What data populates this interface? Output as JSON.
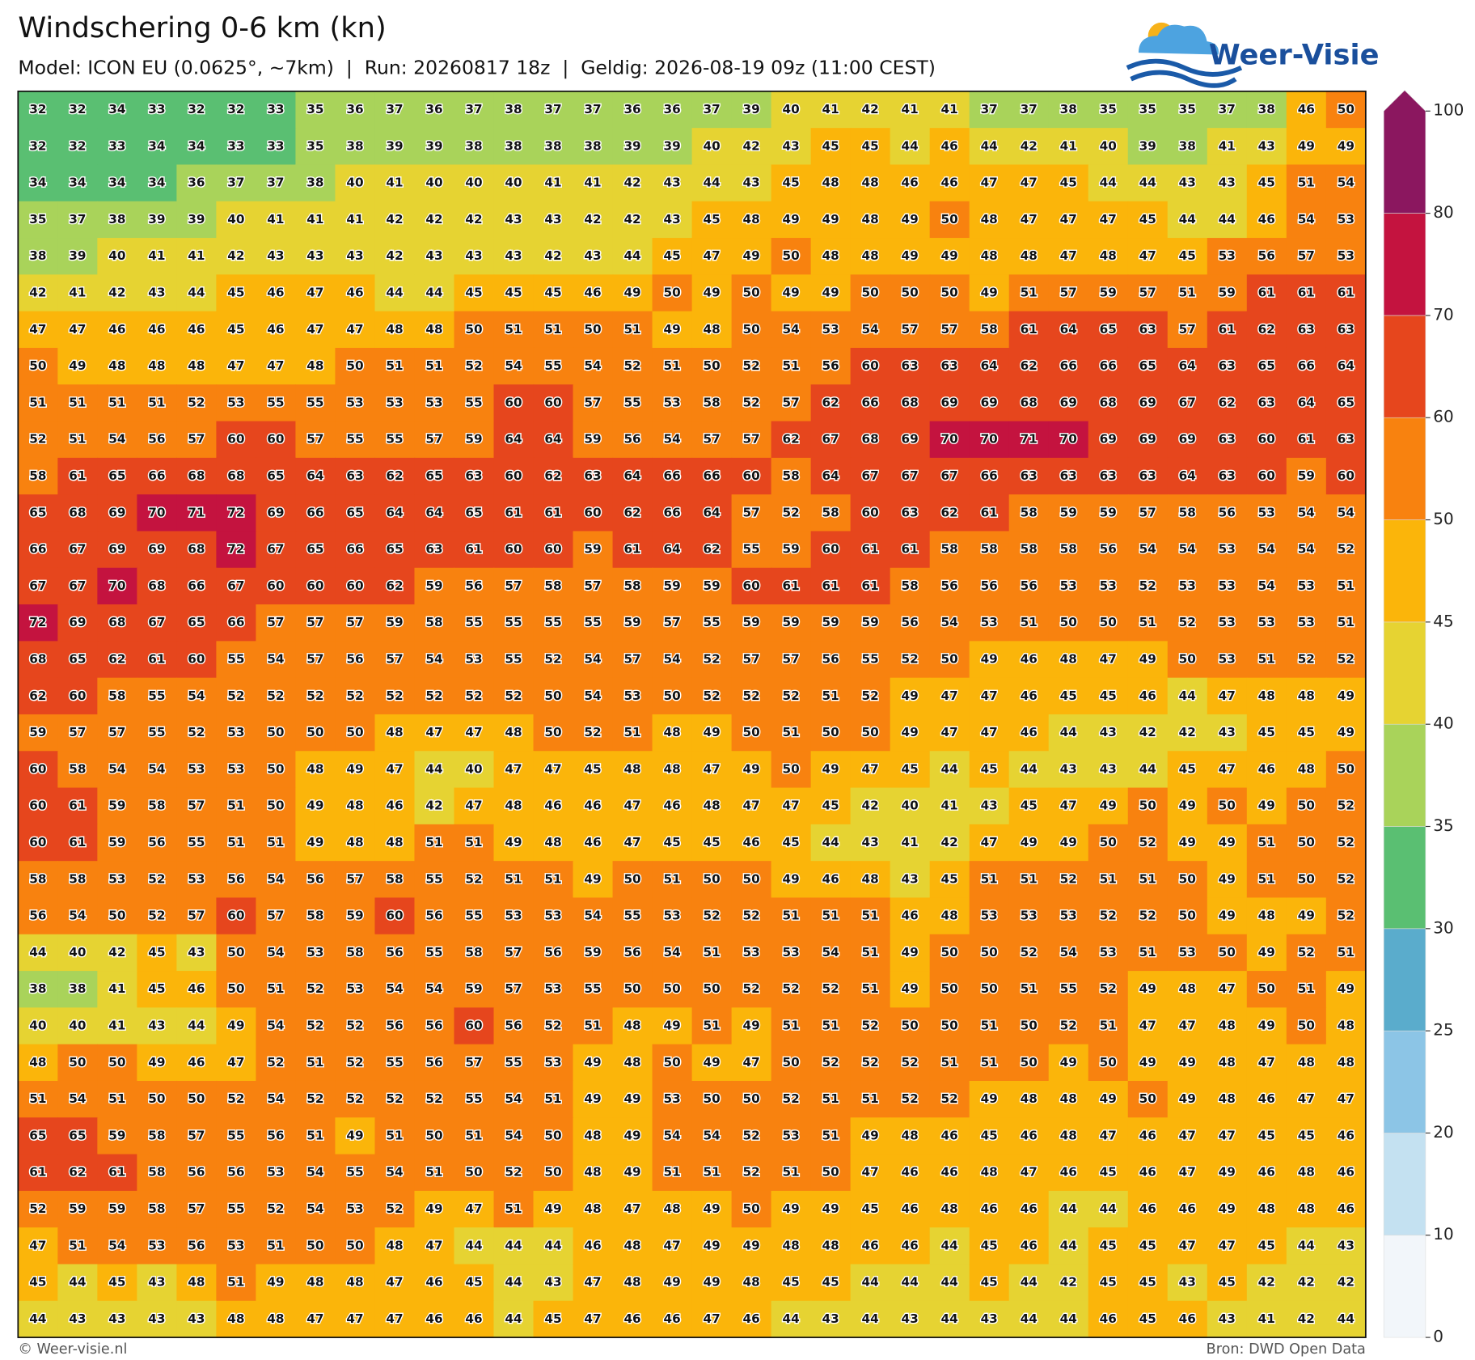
{
  "chart_data": {
    "type": "heatmap",
    "title": "Windschering 0-6 km (kn)",
    "subtitle": "Model: ICON EU (0.0625°, ~7km)  |  Run: 20260817 18z  |  Geldig: 2026-08-19 09z (11:00 CEST)",
    "logo": "Weer-Visie",
    "credit": "© Weer-visie.nl",
    "source": "Bron: DWD Open Data",
    "levels": [
      0,
      10,
      20,
      25,
      30,
      35,
      40,
      45,
      50,
      60,
      70,
      80,
      100
    ],
    "colors": [
      "#f2f6fa",
      "#c4e1f1",
      "#8cc5e6",
      "#5aaccc",
      "#5abf72",
      "#a9d35a",
      "#e6d332",
      "#fbb50a",
      "#f8820f",
      "#e6461d",
      "#c4133f",
      "#8b175f"
    ],
    "values": [
      [
        32,
        32,
        34,
        33,
        32,
        32,
        33,
        35,
        36,
        37,
        36,
        37,
        38,
        37,
        37,
        36,
        36,
        37,
        39,
        40,
        41,
        42,
        41,
        41,
        37,
        37,
        38,
        35,
        35,
        35,
        37,
        38,
        46,
        50
      ],
      [
        32,
        32,
        33,
        34,
        34,
        33,
        33,
        35,
        38,
        39,
        39,
        38,
        38,
        38,
        38,
        39,
        39,
        40,
        42,
        43,
        45,
        45,
        44,
        46,
        44,
        42,
        41,
        40,
        39,
        38,
        41,
        43,
        49,
        49
      ],
      [
        34,
        34,
        34,
        34,
        36,
        37,
        37,
        38,
        40,
        41,
        40,
        40,
        40,
        41,
        41,
        42,
        43,
        44,
        43,
        45,
        48,
        48,
        46,
        46,
        47,
        47,
        45,
        44,
        44,
        43,
        43,
        45,
        51,
        54
      ],
      [
        35,
        37,
        38,
        39,
        39,
        40,
        41,
        41,
        41,
        42,
        42,
        42,
        43,
        43,
        42,
        42,
        43,
        45,
        48,
        49,
        49,
        48,
        49,
        50,
        48,
        47,
        47,
        47,
        45,
        44,
        44,
        46,
        54,
        53
      ],
      [
        38,
        39,
        40,
        41,
        41,
        42,
        43,
        43,
        43,
        42,
        43,
        43,
        43,
        42,
        43,
        44,
        45,
        47,
        49,
        50,
        48,
        48,
        49,
        49,
        48,
        48,
        47,
        48,
        47,
        45,
        53,
        56,
        57,
        53
      ],
      [
        42,
        41,
        42,
        43,
        44,
        45,
        46,
        47,
        46,
        44,
        44,
        45,
        45,
        45,
        46,
        49,
        50,
        49,
        50,
        49,
        49,
        50,
        50,
        50,
        49,
        51,
        57,
        59,
        57,
        51,
        59,
        61,
        61,
        61
      ],
      [
        47,
        47,
        46,
        46,
        46,
        45,
        46,
        47,
        47,
        48,
        48,
        50,
        51,
        51,
        50,
        51,
        49,
        48,
        50,
        54,
        53,
        54,
        57,
        57,
        58,
        61,
        64,
        65,
        63,
        57,
        61,
        62,
        63,
        63
      ],
      [
        50,
        49,
        48,
        48,
        48,
        47,
        47,
        48,
        50,
        51,
        51,
        52,
        54,
        55,
        54,
        52,
        51,
        50,
        52,
        51,
        56,
        60,
        63,
        63,
        64,
        62,
        66,
        66,
        65,
        64,
        63,
        65,
        66,
        64
      ],
      [
        51,
        51,
        51,
        51,
        52,
        53,
        55,
        55,
        53,
        53,
        53,
        55,
        60,
        60,
        57,
        55,
        53,
        58,
        52,
        57,
        62,
        66,
        68,
        69,
        69,
        68,
        69,
        68,
        69,
        67,
        62,
        63,
        64,
        65
      ],
      [
        52,
        51,
        54,
        56,
        57,
        60,
        60,
        57,
        55,
        55,
        57,
        59,
        64,
        64,
        59,
        56,
        54,
        57,
        57,
        62,
        67,
        68,
        69,
        70,
        70,
        71,
        70,
        69,
        69,
        69,
        63,
        60,
        61,
        63
      ],
      [
        58,
        61,
        65,
        66,
        68,
        68,
        65,
        64,
        63,
        62,
        65,
        63,
        60,
        62,
        63,
        64,
        66,
        66,
        60,
        58,
        64,
        67,
        67,
        67,
        66,
        63,
        63,
        63,
        63,
        64,
        63,
        60,
        59,
        60
      ],
      [
        65,
        68,
        69,
        70,
        71,
        72,
        69,
        66,
        65,
        64,
        64,
        65,
        61,
        61,
        60,
        62,
        66,
        64,
        57,
        52,
        58,
        60,
        63,
        62,
        61,
        58,
        59,
        59,
        57,
        58,
        56,
        53,
        54,
        54
      ],
      [
        66,
        67,
        69,
        69,
        68,
        72,
        67,
        65,
        66,
        65,
        63,
        61,
        60,
        60,
        59,
        61,
        64,
        62,
        55,
        59,
        60,
        61,
        61,
        58,
        58,
        58,
        58,
        56,
        54,
        54,
        53,
        54,
        54,
        52
      ],
      [
        67,
        67,
        70,
        68,
        66,
        67,
        60,
        60,
        60,
        62,
        59,
        56,
        57,
        58,
        57,
        58,
        59,
        59,
        60,
        61,
        61,
        61,
        58,
        56,
        56,
        56,
        53,
        53,
        52,
        53,
        53,
        54,
        53,
        51
      ],
      [
        72,
        69,
        68,
        67,
        65,
        66,
        57,
        57,
        57,
        59,
        58,
        55,
        55,
        55,
        55,
        59,
        57,
        55,
        59,
        59,
        59,
        59,
        56,
        54,
        53,
        51,
        50,
        50,
        51,
        52,
        53,
        53,
        53,
        51
      ],
      [
        68,
        65,
        62,
        61,
        60,
        55,
        54,
        57,
        56,
        57,
        54,
        53,
        55,
        52,
        54,
        57,
        54,
        52,
        57,
        57,
        56,
        55,
        52,
        50,
        49,
        46,
        48,
        47,
        49,
        50,
        53,
        51,
        52,
        52
      ],
      [
        62,
        60,
        58,
        55,
        54,
        52,
        52,
        52,
        52,
        52,
        52,
        52,
        52,
        50,
        54,
        53,
        50,
        52,
        52,
        52,
        51,
        52,
        49,
        47,
        47,
        46,
        45,
        45,
        46,
        44,
        47,
        48,
        48,
        49
      ],
      [
        59,
        57,
        57,
        55,
        52,
        53,
        50,
        50,
        50,
        48,
        47,
        47,
        48,
        50,
        52,
        51,
        48,
        49,
        50,
        51,
        50,
        50,
        49,
        47,
        47,
        46,
        44,
        43,
        42,
        42,
        43,
        45,
        45,
        49
      ],
      [
        60,
        58,
        54,
        54,
        53,
        53,
        50,
        48,
        49,
        47,
        44,
        40,
        47,
        47,
        45,
        48,
        48,
        47,
        49,
        50,
        49,
        47,
        45,
        44,
        45,
        44,
        43,
        43,
        44,
        45,
        47,
        46,
        48,
        50
      ],
      [
        60,
        61,
        59,
        58,
        57,
        51,
        50,
        49,
        48,
        46,
        42,
        47,
        48,
        46,
        46,
        47,
        46,
        48,
        47,
        47,
        45,
        42,
        40,
        41,
        43,
        45,
        47,
        49,
        50,
        49,
        50,
        49,
        50,
        52
      ],
      [
        60,
        61,
        59,
        56,
        55,
        51,
        51,
        49,
        48,
        48,
        51,
        51,
        49,
        48,
        46,
        47,
        45,
        45,
        46,
        45,
        44,
        43,
        41,
        42,
        47,
        49,
        49,
        50,
        52,
        49,
        49,
        51,
        50,
        52
      ],
      [
        58,
        58,
        53,
        52,
        53,
        56,
        54,
        56,
        57,
        58,
        55,
        52,
        51,
        51,
        49,
        50,
        51,
        50,
        50,
        49,
        46,
        48,
        43,
        45,
        51,
        51,
        52,
        51,
        51,
        50,
        49,
        51,
        50,
        52
      ],
      [
        56,
        54,
        50,
        52,
        57,
        60,
        57,
        58,
        59,
        60,
        56,
        55,
        53,
        53,
        54,
        55,
        53,
        52,
        52,
        51,
        51,
        51,
        46,
        48,
        53,
        53,
        53,
        52,
        52,
        50,
        49,
        48,
        49,
        52
      ],
      [
        44,
        40,
        42,
        45,
        43,
        50,
        54,
        53,
        58,
        56,
        55,
        58,
        57,
        56,
        59,
        56,
        54,
        51,
        53,
        53,
        54,
        51,
        49,
        50,
        50,
        52,
        54,
        53,
        51,
        53,
        50,
        49,
        52,
        51
      ],
      [
        38,
        38,
        41,
        45,
        46,
        50,
        51,
        52,
        53,
        54,
        54,
        59,
        57,
        53,
        55,
        50,
        50,
        50,
        52,
        52,
        52,
        51,
        49,
        50,
        50,
        51,
        55,
        52,
        49,
        48,
        47,
        50,
        51,
        49
      ],
      [
        40,
        40,
        41,
        43,
        44,
        49,
        54,
        52,
        52,
        56,
        56,
        60,
        56,
        52,
        51,
        48,
        49,
        51,
        49,
        51,
        51,
        52,
        50,
        50,
        51,
        50,
        52,
        51,
        47,
        47,
        48,
        49,
        50,
        48
      ],
      [
        48,
        50,
        50,
        49,
        46,
        47,
        52,
        51,
        52,
        55,
        56,
        57,
        55,
        53,
        49,
        48,
        50,
        49,
        47,
        50,
        52,
        52,
        52,
        51,
        51,
        50,
        49,
        50,
        49,
        49,
        48,
        47,
        48,
        48
      ],
      [
        51,
        54,
        51,
        50,
        50,
        52,
        54,
        52,
        52,
        52,
        52,
        55,
        54,
        51,
        49,
        49,
        53,
        50,
        50,
        52,
        51,
        51,
        52,
        52,
        49,
        48,
        48,
        49,
        50,
        49,
        48,
        46,
        47,
        47
      ],
      [
        65,
        65,
        59,
        58,
        57,
        55,
        56,
        51,
        49,
        51,
        50,
        51,
        54,
        50,
        48,
        49,
        54,
        54,
        52,
        53,
        51,
        49,
        48,
        46,
        45,
        46,
        48,
        47,
        46,
        47,
        47,
        45,
        45,
        46
      ],
      [
        61,
        62,
        61,
        58,
        56,
        56,
        53,
        54,
        55,
        54,
        51,
        50,
        52,
        50,
        48,
        49,
        51,
        51,
        52,
        51,
        50,
        47,
        46,
        46,
        48,
        47,
        46,
        45,
        46,
        47,
        49,
        46,
        48,
        46
      ],
      [
        52,
        59,
        59,
        58,
        57,
        55,
        52,
        54,
        53,
        52,
        49,
        47,
        51,
        49,
        48,
        47,
        48,
        49,
        50,
        49,
        49,
        45,
        46,
        48,
        46,
        46,
        44,
        44,
        46,
        46,
        49,
        48,
        48,
        46
      ],
      [
        47,
        51,
        54,
        53,
        56,
        53,
        51,
        50,
        50,
        48,
        47,
        44,
        44,
        44,
        46,
        48,
        47,
        49,
        49,
        48,
        48,
        46,
        46,
        44,
        45,
        46,
        44,
        45,
        45,
        47,
        47,
        45,
        44,
        43
      ],
      [
        45,
        44,
        45,
        43,
        48,
        51,
        49,
        48,
        48,
        47,
        46,
        45,
        44,
        43,
        47,
        48,
        49,
        49,
        48,
        45,
        45,
        44,
        44,
        44,
        45,
        44,
        42,
        45,
        45,
        43,
        45,
        42,
        42,
        42
      ],
      [
        44,
        43,
        43,
        43,
        43,
        48,
        48,
        47,
        47,
        47,
        46,
        46,
        44,
        45,
        47,
        46,
        46,
        47,
        46,
        44,
        43,
        44,
        43,
        44,
        43,
        44,
        44,
        46,
        45,
        46,
        43,
        41,
        42,
        44
      ]
    ]
  }
}
